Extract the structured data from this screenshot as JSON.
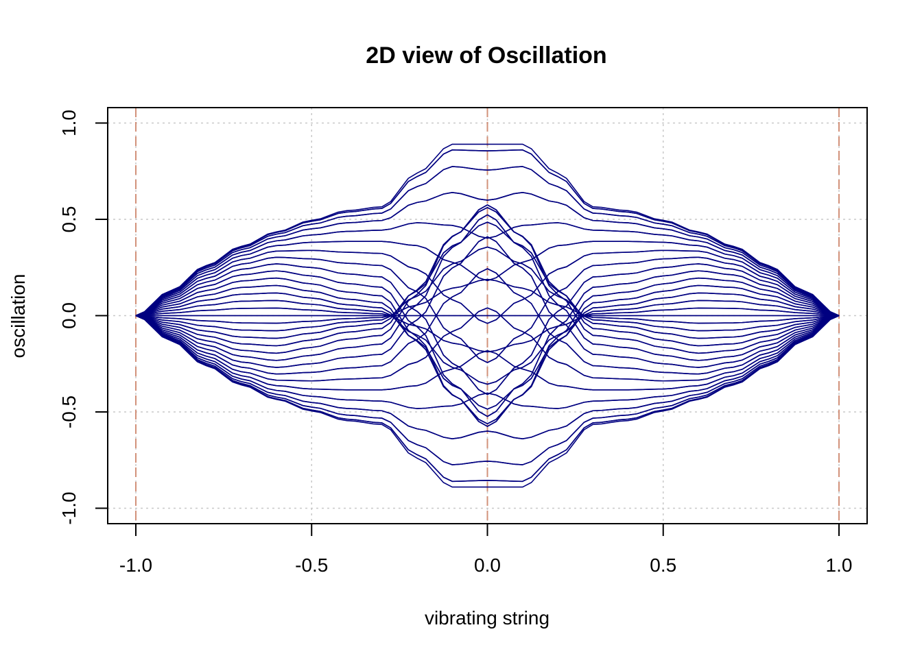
{
  "chart_data": {
    "type": "line",
    "title": "2D view of Oscillation",
    "xlabel": "vibrating string",
    "ylabel": "oscillation",
    "xlim": [
      -1.08,
      1.08
    ],
    "ylim": [
      -1.08,
      1.08
    ],
    "x_ticks": [
      -1.0,
      -0.5,
      0.0,
      0.5,
      1.0
    ],
    "x_tick_labels": [
      "-1.0",
      "-0.5",
      "0.0",
      "0.5",
      "1.0"
    ],
    "y_ticks": [
      -1.0,
      -0.5,
      0.0,
      0.5,
      1.0
    ],
    "y_tick_labels": [
      "-1.0",
      "-0.5",
      "0.0",
      "0.5",
      "1.0"
    ],
    "grid": true,
    "vertical_reference_lines": [
      -1.0,
      0.0,
      1.0
    ],
    "colors": {
      "line": "#000080",
      "grid": "#c8c8c8",
      "reference": "#d2917a",
      "frame": "#000000"
    },
    "profile_x": [
      -1.0,
      -0.9,
      -0.8,
      -0.7,
      -0.6,
      -0.5,
      -0.4,
      -0.3,
      -0.2,
      -0.1,
      0.0,
      0.1,
      0.2,
      0.3,
      0.4,
      0.5,
      0.6,
      0.7,
      0.8,
      0.9,
      1.0
    ],
    "profile_a": [
      0.0,
      0.13,
      0.26,
      0.36,
      0.42,
      0.44,
      0.445,
      0.445,
      0.42,
      0.32,
      0.21,
      0.32,
      0.42,
      0.445,
      0.445,
      0.44,
      0.42,
      0.36,
      0.26,
      0.13,
      0.0
    ],
    "profile_b": [
      0.0,
      0.0,
      0.0,
      0.0,
      0.015,
      0.055,
      0.1,
      0.12,
      0.32,
      0.57,
      0.68,
      0.57,
      0.32,
      0.12,
      0.1,
      0.055,
      0.015,
      0.0,
      0.0,
      0.0,
      0.0
    ],
    "num_curves": 60
  }
}
